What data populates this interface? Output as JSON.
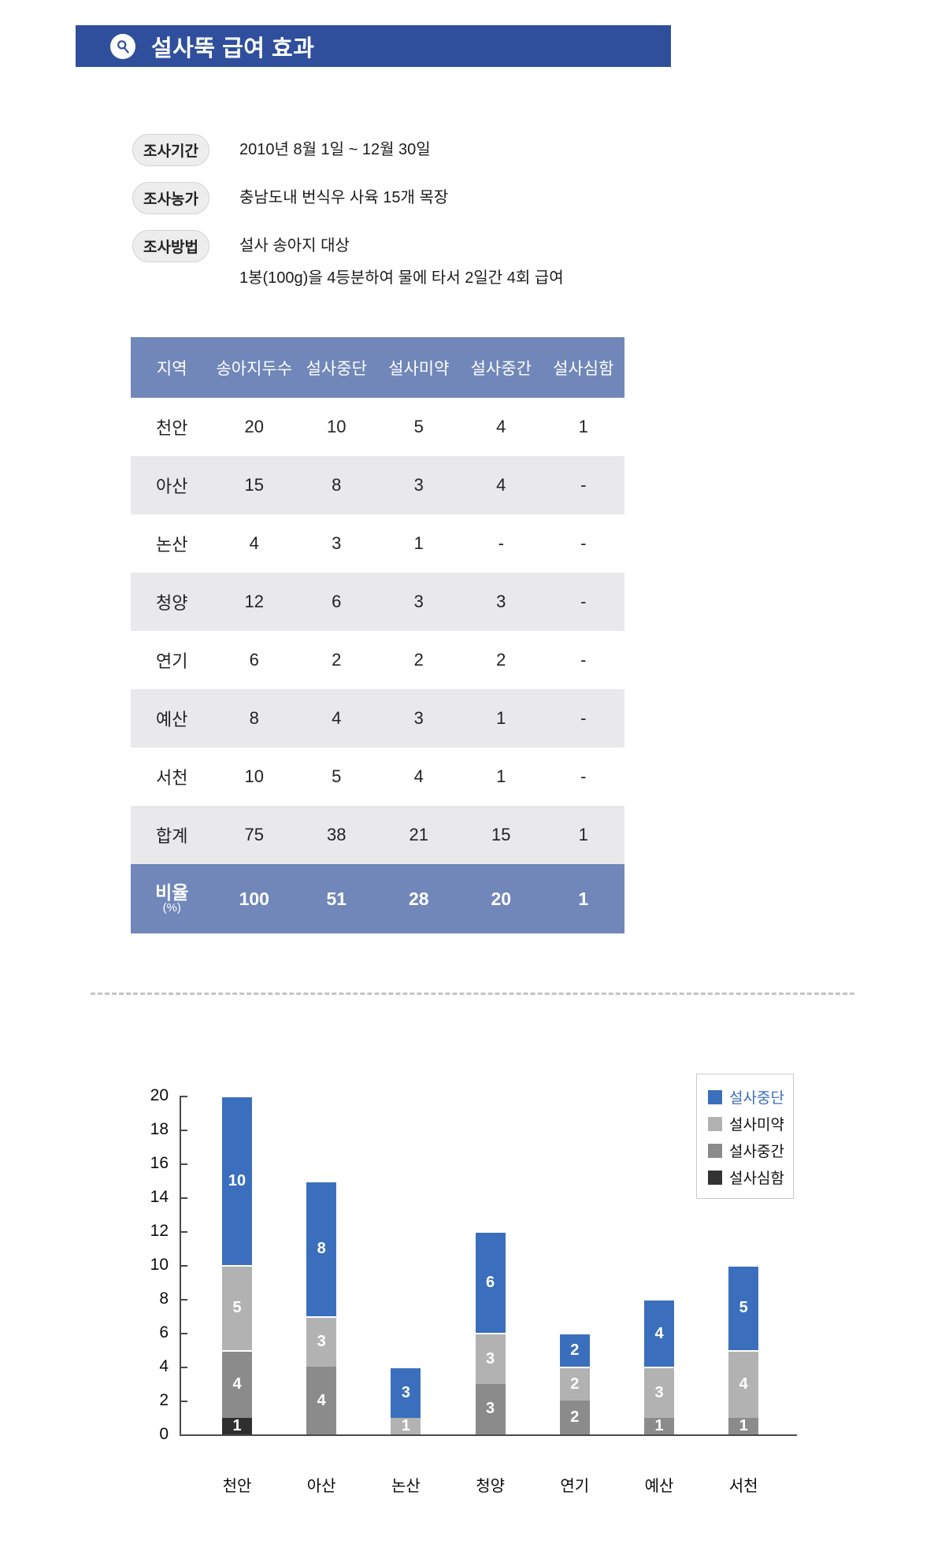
{
  "header": {
    "title": "설사뚝 급여 효과",
    "icon": "magnifier-icon"
  },
  "info": [
    {
      "label": "조사기간",
      "lines": [
        "2010년 8월 1일 ~ 12월 30일"
      ]
    },
    {
      "label": "조사농가",
      "lines": [
        "충남도내 번식우 사육 15개 목장"
      ]
    },
    {
      "label": "조사방법",
      "lines": [
        "설사 송아지 대상",
        "1봉(100g)을 4등분하여 물에 타서 2일간 4회 급여"
      ]
    }
  ],
  "table": {
    "columns": [
      "지역",
      "송아지두수",
      "설사중단",
      "설사미약",
      "설사중간",
      "설사심함"
    ],
    "rows": [
      {
        "region": "천안",
        "values": [
          "20",
          "10",
          "5",
          "4",
          "1"
        ]
      },
      {
        "region": "아산",
        "values": [
          "15",
          "8",
          "3",
          "4",
          "-"
        ]
      },
      {
        "region": "논산",
        "values": [
          "4",
          "3",
          "1",
          "-",
          "-"
        ]
      },
      {
        "region": "청양",
        "values": [
          "12",
          "6",
          "3",
          "3",
          "-"
        ]
      },
      {
        "region": "연기",
        "values": [
          "6",
          "2",
          "2",
          "2",
          "-"
        ]
      },
      {
        "region": "예산",
        "values": [
          "8",
          "4",
          "3",
          "1",
          "-"
        ]
      },
      {
        "region": "서천",
        "values": [
          "10",
          "5",
          "4",
          "1",
          "-"
        ]
      },
      {
        "region": "합계",
        "values": [
          "75",
          "38",
          "21",
          "15",
          "1"
        ]
      }
    ],
    "ratio_row": {
      "label": "비율",
      "sublabel": "(%)",
      "values": [
        "100",
        "51",
        "28",
        "20",
        "1"
      ]
    }
  },
  "chart_data": {
    "type": "bar",
    "stacked": true,
    "categories": [
      "천안",
      "아산",
      "논산",
      "청양",
      "연기",
      "예산",
      "서천"
    ],
    "series": [
      {
        "name": "설사심함",
        "color": "#2f2f2f",
        "values": [
          1,
          0,
          0,
          0,
          0,
          0,
          0
        ]
      },
      {
        "name": "설사중간",
        "color": "#8b8b8b",
        "values": [
          4,
          4,
          0,
          3,
          2,
          1,
          1
        ]
      },
      {
        "name": "설사미약",
        "color": "#b2b2b2",
        "values": [
          5,
          3,
          1,
          3,
          2,
          3,
          4
        ]
      },
      {
        "name": "설사중단",
        "color": "#3b6fbd",
        "values": [
          10,
          8,
          3,
          6,
          2,
          4,
          5
        ]
      }
    ],
    "totals": [
      20,
      15,
      4,
      12,
      6,
      8,
      10
    ],
    "ylim": [
      0,
      20
    ],
    "ytick_step": 2,
    "grid": false,
    "legend": {
      "position": "top-right",
      "entries": [
        {
          "label": "설사중단",
          "color": "#3b6fbd",
          "text_color": "#3b6fbd"
        },
        {
          "label": "설사미약",
          "color": "#b2b2b2",
          "text_color": "#111111"
        },
        {
          "label": "설사중간",
          "color": "#8b8b8b",
          "text_color": "#111111"
        },
        {
          "label": "설사심함",
          "color": "#333333",
          "text_color": "#111111"
        }
      ]
    }
  },
  "colors": {
    "header_bar": "#2f4f9d",
    "table_header": "#7187ba",
    "table_row_alt": "#e9e9ec",
    "ratio_row": "#7187ba",
    "bar_blue": "#3b6fbd",
    "bar_light_gray": "#b2b2b2",
    "bar_mid_gray": "#8b8b8b",
    "bar_dark": "#2f2f2f"
  }
}
